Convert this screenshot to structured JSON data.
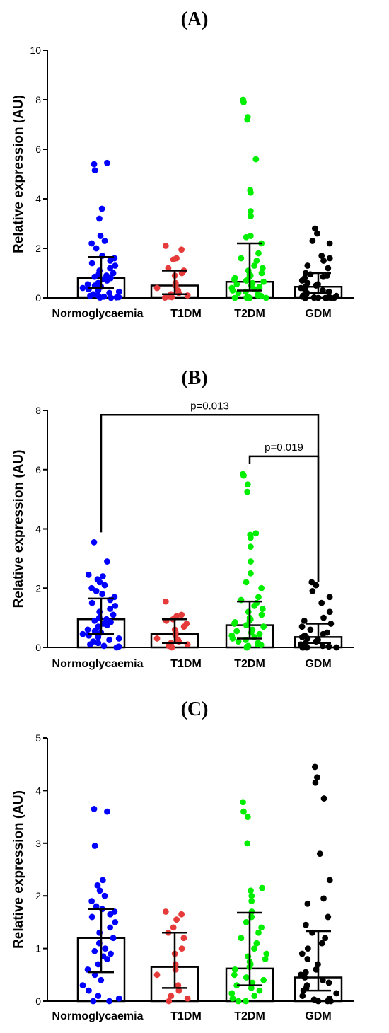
{
  "chart_data": [
    {
      "type": "bar",
      "panel_label": "(A)",
      "ylabel": "Relative expression (AU)",
      "ylim": [
        0,
        10
      ],
      "yticks": [
        0,
        2,
        4,
        6,
        8,
        10
      ],
      "categories": [
        "Normoglycaemia",
        "T1DM",
        "T2DM",
        "GDM"
      ],
      "colors": [
        "#0000ff",
        "#e63b3b",
        "#00ee00",
        "#000000"
      ],
      "bar_values": [
        0.8,
        0.5,
        0.65,
        0.45
      ],
      "error_low": [
        0.4,
        0.15,
        0.3,
        0.2
      ],
      "error_high": [
        1.65,
        1.1,
        2.2,
        1.0
      ],
      "points": [
        [
          5.4,
          5.45,
          5.15,
          3.6,
          3.2,
          2.5,
          2.3,
          2.2,
          2.0,
          1.7,
          1.6,
          1.5,
          1.4,
          1.3,
          1.2,
          1.1,
          1.0,
          0.95,
          0.9,
          0.85,
          0.8,
          0.75,
          0.7,
          0.6,
          0.55,
          0.5,
          0.45,
          0.4,
          0.35,
          0.3,
          0.25,
          0.2,
          0.15,
          0.1,
          0.08,
          0.05,
          0.03,
          0.02,
          0.01,
          0.0
        ],
        [
          2.1,
          1.95,
          1.6,
          1.55,
          1.2,
          1.1,
          1.0,
          0.9,
          0.6,
          0.5,
          0.4,
          0.3,
          0.2,
          0.15,
          0.1,
          0.05,
          0.03,
          0.01
        ],
        [
          8.0,
          7.9,
          7.3,
          7.2,
          5.6,
          4.35,
          4.25,
          3.5,
          3.3,
          2.5,
          2.45,
          2.2,
          1.8,
          1.6,
          1.5,
          1.3,
          1.2,
          1.1,
          1.0,
          0.95,
          0.9,
          0.85,
          0.8,
          0.75,
          0.7,
          0.65,
          0.6,
          0.55,
          0.5,
          0.45,
          0.4,
          0.35,
          0.3,
          0.25,
          0.2,
          0.15,
          0.1,
          0.08,
          0.05,
          0.03,
          0.02,
          0.01,
          0.0,
          0.0,
          0.0,
          0.0
        ],
        [
          2.8,
          2.6,
          2.3,
          2.2,
          1.7,
          1.6,
          1.5,
          1.3,
          1.2,
          1.0,
          0.95,
          0.9,
          0.85,
          0.8,
          0.7,
          0.6,
          0.55,
          0.5,
          0.45,
          0.4,
          0.35,
          0.3,
          0.25,
          0.2,
          0.15,
          0.1,
          0.08,
          0.05,
          0.03,
          0.02,
          0.01,
          0.0,
          0.0,
          0.0,
          0.0,
          0.0,
          0.0,
          0.0
        ]
      ],
      "annotations": []
    },
    {
      "type": "bar",
      "panel_label": "(B)",
      "ylabel": "Relative expression (AU)",
      "ylim": [
        0,
        8
      ],
      "yticks": [
        0,
        2,
        4,
        6,
        8
      ],
      "categories": [
        "Normoglycaemia",
        "T1DM",
        "T2DM",
        "GDM"
      ],
      "colors": [
        "#0000ff",
        "#e63b3b",
        "#00ee00",
        "#000000"
      ],
      "bar_values": [
        0.95,
        0.45,
        0.75,
        0.35
      ],
      "error_low": [
        0.45,
        0.15,
        0.3,
        0.15
      ],
      "error_high": [
        1.65,
        0.95,
        1.55,
        0.8
      ],
      "points": [
        [
          3.55,
          2.9,
          2.45,
          2.4,
          2.3,
          2.2,
          2.1,
          2.0,
          1.9,
          1.8,
          1.7,
          1.6,
          1.5,
          1.4,
          1.3,
          1.2,
          1.1,
          1.0,
          0.95,
          0.9,
          0.85,
          0.8,
          0.75,
          0.7,
          0.6,
          0.55,
          0.5,
          0.45,
          0.4,
          0.35,
          0.3,
          0.25,
          0.2,
          0.15,
          0.1,
          0.05,
          0.03,
          0.0
        ],
        [
          1.55,
          1.1,
          1.05,
          0.95,
          0.9,
          0.8,
          0.7,
          0.6,
          0.5,
          0.4,
          0.3,
          0.25,
          0.2,
          0.15,
          0.1,
          0.05,
          0.0
        ],
        [
          5.85,
          5.8,
          5.5,
          5.25,
          3.85,
          3.8,
          3.7,
          3.4,
          2.9,
          2.5,
          2.2,
          2.0,
          1.7,
          1.6,
          1.5,
          1.4,
          1.3,
          1.2,
          1.1,
          1.0,
          0.95,
          0.9,
          0.85,
          0.8,
          0.75,
          0.7,
          0.6,
          0.55,
          0.5,
          0.45,
          0.4,
          0.35,
          0.3,
          0.25,
          0.2,
          0.15,
          0.1,
          0.08,
          0.05,
          0.03,
          0.0,
          0.0
        ],
        [
          2.2,
          2.1,
          1.9,
          1.7,
          1.5,
          1.2,
          1.0,
          0.9,
          0.8,
          0.7,
          0.6,
          0.5,
          0.45,
          0.4,
          0.35,
          0.3,
          0.25,
          0.2,
          0.15,
          0.1,
          0.08,
          0.05,
          0.03,
          0.0,
          0.0,
          0.0,
          0.0,
          0.0
        ]
      ],
      "annotations": [
        {
          "from": 0,
          "to": 3,
          "y": 7.85,
          "text": "p=0.013"
        },
        {
          "from": 2,
          "to": 3,
          "y": 6.45,
          "text": "p=0.019"
        }
      ]
    },
    {
      "type": "bar",
      "panel_label": "(C)",
      "ylabel": "Relative expression (AU)",
      "ylim": [
        0,
        5
      ],
      "yticks": [
        0,
        1,
        2,
        3,
        4,
        5
      ],
      "categories": [
        "Normoglycaemia",
        "T1DM",
        "T2DM",
        "GDM"
      ],
      "colors": [
        "#0000ff",
        "#e63b3b",
        "#00ee00",
        "#000000"
      ],
      "bar_values": [
        1.2,
        0.65,
        0.62,
        0.45
      ],
      "error_low": [
        0.55,
        0.25,
        0.3,
        0.2
      ],
      "error_high": [
        1.75,
        1.3,
        1.68,
        1.33
      ],
      "points": [
        [
          3.65,
          3.6,
          2.95,
          2.3,
          2.2,
          2.1,
          2.0,
          1.9,
          1.8,
          1.75,
          1.7,
          1.65,
          1.6,
          1.5,
          1.4,
          1.3,
          1.2,
          1.1,
          1.0,
          0.95,
          0.9,
          0.85,
          0.8,
          0.7,
          0.6,
          0.5,
          0.4,
          0.3,
          0.2,
          0.1,
          0.05,
          0.0,
          0.0
        ],
        [
          1.7,
          1.65,
          1.55,
          1.4,
          1.3,
          1.2,
          1.0,
          0.9,
          0.7,
          0.6,
          0.5,
          0.3,
          0.2,
          0.1,
          0.05,
          0.0
        ],
        [
          3.78,
          3.6,
          3.5,
          3.0,
          2.15,
          2.1,
          2.0,
          1.9,
          1.7,
          1.6,
          1.5,
          1.4,
          1.3,
          1.2,
          1.1,
          1.0,
          0.9,
          0.85,
          0.8,
          0.75,
          0.7,
          0.65,
          0.6,
          0.5,
          0.45,
          0.4,
          0.35,
          0.3,
          0.25,
          0.2,
          0.15,
          0.1,
          0.05,
          0.0,
          0.0
        ],
        [
          4.45,
          4.25,
          4.15,
          3.85,
          2.8,
          2.3,
          1.95,
          1.85,
          1.6,
          1.45,
          1.3,
          1.2,
          1.1,
          1.0,
          0.9,
          0.8,
          0.7,
          0.6,
          0.55,
          0.5,
          0.45,
          0.4,
          0.35,
          0.3,
          0.25,
          0.2,
          0.15,
          0.1,
          0.05,
          0.03,
          0.0,
          0.0,
          0.0
        ]
      ],
      "annotations": []
    }
  ]
}
